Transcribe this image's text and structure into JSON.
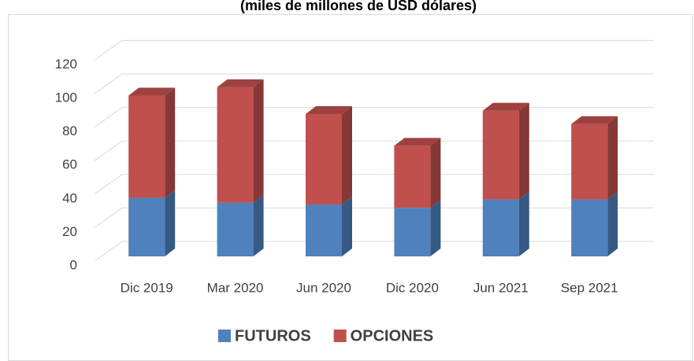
{
  "chart_data": {
    "type": "bar3d_stacked",
    "title": "(miles de millones de USD dólares)",
    "categories": [
      "Dic 2019",
      "Mar 2020",
      "Jun 2020",
      "Dic 2020",
      "Jun 2021",
      "Sep 2021"
    ],
    "series": [
      {
        "name": "FUTUROS",
        "color": "#4f81bd",
        "values": [
          35,
          32,
          31,
          29,
          34,
          34
        ]
      },
      {
        "name": "OPCIONES",
        "color": "#c0504d",
        "values": [
          61,
          69,
          54,
          37,
          53,
          45
        ]
      }
    ],
    "ylim": [
      0,
      120
    ],
    "yticks": [
      0,
      20,
      40,
      60,
      80,
      100,
      120
    ],
    "grid": true
  }
}
